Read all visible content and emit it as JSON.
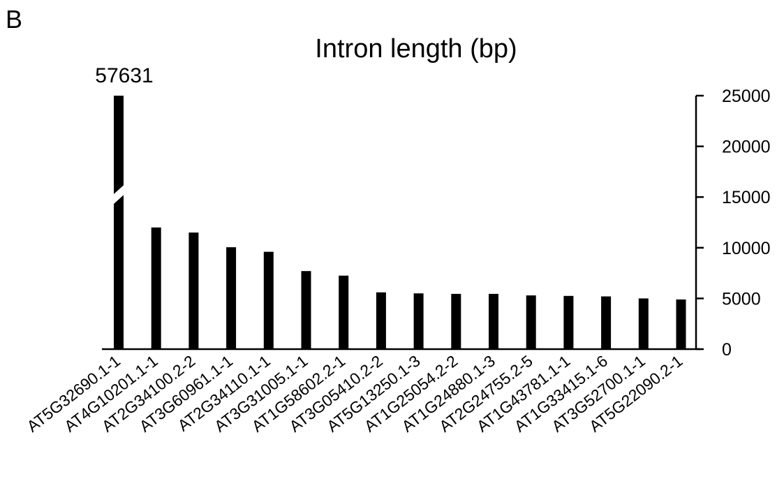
{
  "panel_label": "B",
  "chart_data": {
    "type": "bar",
    "title": "Intron length (bp)",
    "xlabel": "",
    "ylabel": "",
    "ylim": [
      0,
      25000
    ],
    "yticks": [
      0,
      5000,
      10000,
      15000,
      20000,
      25000
    ],
    "y_axis_position": "right",
    "axis_break": {
      "bar_index": 0,
      "from": 15000,
      "to": 15500
    },
    "categories": [
      "AT5G32690.1-1",
      "AT4G10201.1-1",
      "AT2G34100.2-2",
      "AT3G60961.1-1",
      "AT2G34110.1-1",
      "AT3G31005.1-1",
      "AT1G58602.2-1",
      "AT3G05410.2-2",
      "AT5G13250.1-3",
      "AT1G25054.2-2",
      "AT1G24880.1-3",
      "AT2G24755.2-5",
      "AT1G43781.1-1",
      "AT1G33415.1-6",
      "AT3G52700.1-1",
      "AT5G22090.2-1"
    ],
    "values": [
      57631,
      12000,
      11500,
      10050,
      9600,
      7700,
      7250,
      5600,
      5500,
      5450,
      5450,
      5300,
      5250,
      5200,
      5000,
      4900
    ],
    "data_labels": [
      {
        "index": 0,
        "text": "57631"
      }
    ],
    "grid": false,
    "legend": "none",
    "bar_color": "#000000"
  }
}
